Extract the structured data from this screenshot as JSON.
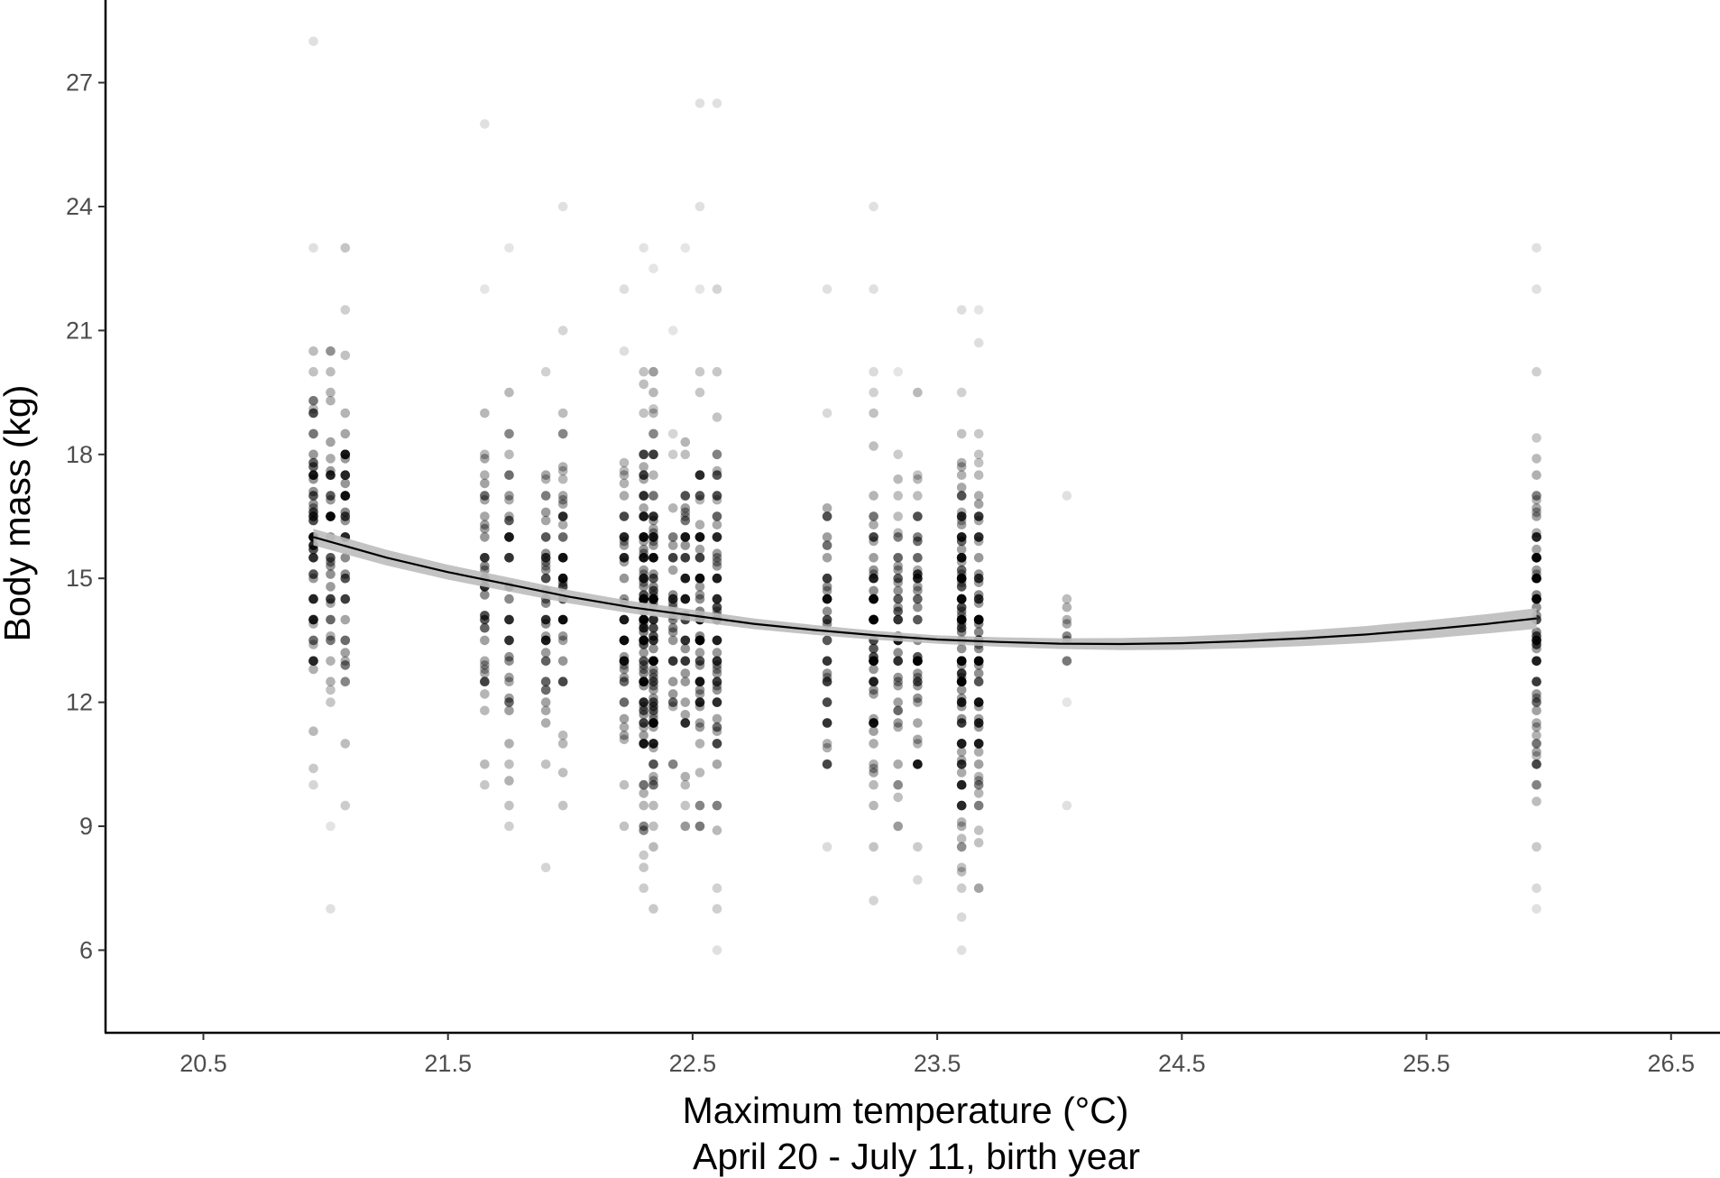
{
  "chart_data": {
    "type": "scatter",
    "title": "",
    "xlabel": "Maximum temperature (°C)",
    "xlabel_line2": "April 20 - July 11, birth year",
    "ylabel": "Body mass (kg)",
    "xlim": [
      20.1,
      26.7
    ],
    "ylim": [
      4.0,
      29.0
    ],
    "x_ticks": [
      20.5,
      21.5,
      22.5,
      23.5,
      24.5,
      25.5,
      26.5
    ],
    "x_tick_labels": [
      "20.5",
      "21.5",
      "22.5",
      "23.5",
      "24.5",
      "25.5",
      "26.5"
    ],
    "y_ticks": [
      6,
      9,
      12,
      15,
      18,
      21,
      24,
      27
    ],
    "y_tick_labels": [
      "6",
      "9",
      "12",
      "15",
      "18",
      "21",
      "24",
      "27"
    ],
    "grid": false,
    "point_color": "#000000",
    "line_color": "#000000",
    "ribbon_color": "#bdbdbd",
    "groups": [
      {
        "x": 20.95,
        "min": 10.0,
        "max": 23.0,
        "outliers": [
          28.0
        ],
        "peak": 16.0,
        "n": 70
      },
      {
        "x": 21.02,
        "min": 9.0,
        "max": 20.5,
        "outliers": [
          7.0
        ],
        "peak": 16.0,
        "n": 40
      },
      {
        "x": 21.08,
        "min": 9.5,
        "max": 23.0,
        "outliers": [],
        "peak": 16.0,
        "n": 45
      },
      {
        "x": 21.65,
        "min": 10.0,
        "max": 22.0,
        "outliers": [
          26.0
        ],
        "peak": 15.0,
        "n": 40
      },
      {
        "x": 21.75,
        "min": 9.0,
        "max": 23.0,
        "outliers": [],
        "peak": 14.5,
        "n": 40
      },
      {
        "x": 21.9,
        "min": 8.0,
        "max": 20.0,
        "outliers": [],
        "peak": 14.5,
        "n": 40
      },
      {
        "x": 21.97,
        "min": 9.5,
        "max": 21.0,
        "outliers": [
          24.0
        ],
        "peak": 14.5,
        "n": 45
      },
      {
        "x": 22.22,
        "min": 9.0,
        "max": 22.0,
        "outliers": [],
        "peak": 14.0,
        "n": 50
      },
      {
        "x": 22.3,
        "min": 7.5,
        "max": 23.0,
        "outliers": [],
        "peak": 14.0,
        "n": 120
      },
      {
        "x": 22.34,
        "min": 7.0,
        "max": 22.5,
        "outliers": [],
        "peak": 14.0,
        "n": 110
      },
      {
        "x": 22.42,
        "min": 10.5,
        "max": 21.0,
        "outliers": [],
        "peak": 14.0,
        "n": 30
      },
      {
        "x": 22.47,
        "min": 9.0,
        "max": 23.0,
        "outliers": [],
        "peak": 14.0,
        "n": 50
      },
      {
        "x": 22.53,
        "min": 9.0,
        "max": 22.0,
        "outliers": [
          24.0,
          26.5
        ],
        "peak": 14.0,
        "n": 70
      },
      {
        "x": 22.6,
        "min": 7.0,
        "max": 22.0,
        "outliers": [
          6.0,
          26.5
        ],
        "peak": 14.0,
        "n": 70
      },
      {
        "x": 23.05,
        "min": 8.5,
        "max": 19.0,
        "outliers": [
          22.0
        ],
        "peak": 14.0,
        "n": 45
      },
      {
        "x": 23.24,
        "min": 7.2,
        "max": 20.0,
        "outliers": [
          22.0,
          24.0
        ],
        "peak": 13.5,
        "n": 70
      },
      {
        "x": 23.34,
        "min": 9.0,
        "max": 20.0,
        "outliers": [],
        "peak": 13.5,
        "n": 45
      },
      {
        "x": 23.42,
        "min": 7.7,
        "max": 19.5,
        "outliers": [],
        "peak": 13.5,
        "n": 60
      },
      {
        "x": 23.6,
        "min": 6.8,
        "max": 21.5,
        "outliers": [
          6.0
        ],
        "peak": 13.5,
        "n": 130
      },
      {
        "x": 23.67,
        "min": 7.5,
        "max": 21.5,
        "outliers": [],
        "peak": 13.5,
        "n": 90
      },
      {
        "x": 24.03,
        "min": 12.0,
        "max": 14.5,
        "outliers": [
          9.5,
          17.0
        ],
        "peak": 13.5,
        "n": 7
      },
      {
        "x": 25.95,
        "min": 7.5,
        "max": 20.0,
        "outliers": [
          7.0,
          22.0,
          23.0
        ],
        "peak": 14.0,
        "n": 80
      }
    ],
    "smooth_fit": {
      "x": [
        20.95,
        21.25,
        21.5,
        21.75,
        22.0,
        22.25,
        22.5,
        22.75,
        23.0,
        23.25,
        23.5,
        23.75,
        24.0,
        24.25,
        24.5,
        24.75,
        25.0,
        25.25,
        25.5,
        25.75,
        25.95
      ],
      "y": [
        16.0,
        15.5,
        15.15,
        14.85,
        14.55,
        14.3,
        14.1,
        13.9,
        13.75,
        13.62,
        13.52,
        13.46,
        13.42,
        13.41,
        13.43,
        13.48,
        13.55,
        13.64,
        13.76,
        13.9,
        14.03
      ],
      "ci_halfwidth_start": 0.2,
      "ci_halfwidth_mid": 0.1,
      "ci_halfwidth_end": 0.25
    }
  }
}
